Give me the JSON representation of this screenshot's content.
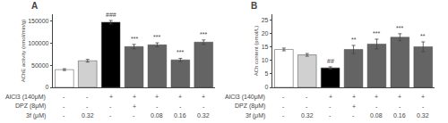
{
  "chart_data": [
    {
      "type": "bar",
      "title": "A",
      "ylabel": "AChE activity (nmol/min/g)",
      "categories": [
        null,
        null,
        null,
        null,
        null,
        null,
        null
      ],
      "values": [
        40000,
        60000,
        147000,
        92000,
        96000,
        62000,
        102000
      ],
      "errors": [
        2000,
        3000,
        4000,
        5000,
        4500,
        3500,
        5000
      ],
      "colors": [
        "#ffffff",
        "#d0d0d0",
        "#000000",
        "#646464",
        "#646464",
        "#646464",
        "#646464"
      ],
      "significance": [
        null,
        null,
        "###",
        "***",
        "***",
        "***",
        "***"
      ],
      "rows": [
        {
          "label": "AlCl3 (140μM)",
          "values": [
            "-",
            "-",
            "+",
            "+",
            "+",
            "+",
            "+"
          ]
        },
        {
          "label": "DPZ (8μM)",
          "values": [
            "-",
            "-",
            "-",
            "+",
            "-",
            "-",
            "-"
          ]
        },
        {
          "label": "3f (μM)",
          "values": [
            "-",
            "0.32",
            "-",
            "-",
            "0.08",
            "0.16",
            "0.32"
          ]
        }
      ],
      "ylim": [
        0,
        165000
      ],
      "yticks": [
        0,
        50000,
        100000,
        150000
      ],
      "grid": false,
      "tick_labels": "y"
    },
    {
      "type": "bar",
      "title": "B",
      "ylabel": "ACh content (pmol/L)",
      "categories": [
        null,
        null,
        null,
        null,
        null,
        null,
        null
      ],
      "values": [
        14.0,
        12.0,
        7.2,
        14.0,
        16.0,
        18.5,
        15.0
      ],
      "errors": [
        0.5,
        0.5,
        0.4,
        1.5,
        1.8,
        1.3,
        1.8
      ],
      "colors": [
        "#ffffff",
        "#d0d0d0",
        "#000000",
        "#646464",
        "#646464",
        "#646464",
        "#646464"
      ],
      "significance": [
        null,
        null,
        "##",
        "**",
        "***",
        "***",
        "**"
      ],
      "rows": [
        {
          "label": "AlCl3 (140μM)",
          "values": [
            "-",
            "-",
            "+",
            "+",
            "+",
            "+",
            "+"
          ]
        },
        {
          "label": "DPZ (8μM)",
          "values": [
            "-",
            "-",
            "-",
            "+",
            "-",
            "-",
            "-"
          ]
        },
        {
          "label": "3f (μM)",
          "values": [
            "-",
            "0.32",
            "-",
            "-",
            "0.08",
            "0.16",
            "0.32"
          ]
        }
      ],
      "ylim": [
        0,
        27
      ],
      "yticks": [
        0,
        5,
        10,
        15,
        20,
        25
      ],
      "grid": false,
      "tick_labels": "y"
    }
  ]
}
